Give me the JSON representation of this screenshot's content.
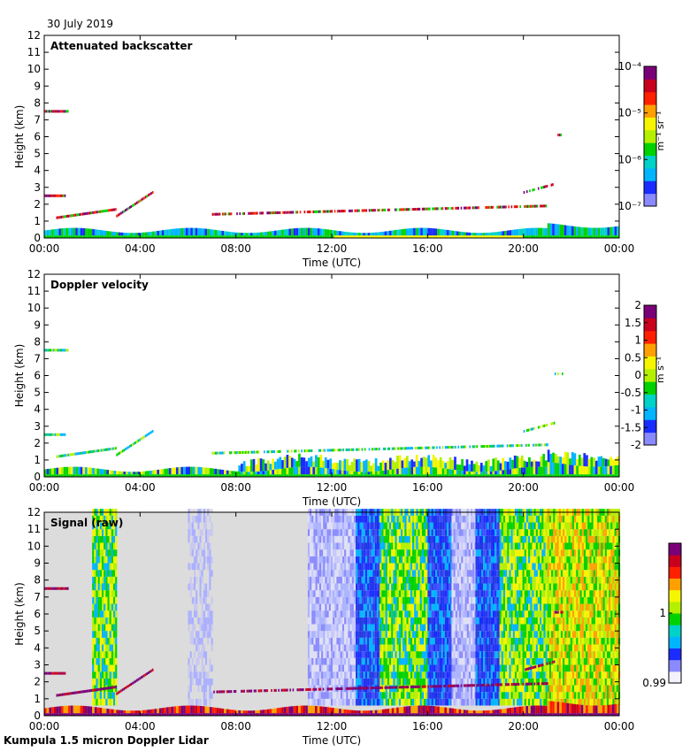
{
  "date": "30 July 2019",
  "footer": "Kumpula 1.5 micron Doppler Lidar",
  "colors": {
    "no_data": "#ffffff",
    "raw_background": "#dcdcdc",
    "colormap": [
      "#f2f2fb",
      "#8a8aff",
      "#1a2cff",
      "#00b4ff",
      "#00d2c8",
      "#00d200",
      "#b4f000",
      "#f5f500",
      "#ffa000",
      "#ff2000",
      "#c8001e",
      "#7a0078"
    ]
  },
  "chart_data": [
    {
      "type": "heatmap",
      "title": "Attenuated backscatter",
      "xlabel": "Time (UTC)",
      "ylabel": "Height (km)",
      "x_ticks": [
        "00:00",
        "04:00",
        "08:00",
        "12:00",
        "16:00",
        "20:00",
        "00:00"
      ],
      "xlim_hours": [
        0,
        24
      ],
      "ylim": [
        0,
        12
      ],
      "y_ticks": [
        0,
        1,
        2,
        3,
        4,
        5,
        6,
        7,
        8,
        9,
        10,
        11,
        12
      ],
      "colorbar": {
        "scale": "log",
        "range": [
          1e-07,
          0.0001
        ],
        "unit_text": "m⁻¹ sr⁻¹",
        "ticks": [
          {
            "label": "10⁻⁴",
            "value": -4
          },
          {
            "label": "10⁻⁵",
            "value": -5
          },
          {
            "label": "10⁻⁶",
            "value": -6
          },
          {
            "label": "10⁻⁷",
            "value": -7
          }
        ]
      },
      "features": {
        "boundary_layer": "blue-green near-surface layer from 0 to about 0.5-1 km all day",
        "cloud_layers_km": [
          {
            "from_h": 0.0,
            "to_h": 1.0,
            "height": 7.5
          },
          {
            "from_h": 0.0,
            "to_h": 0.9,
            "height": 2.5
          },
          {
            "from_h": 0.5,
            "to_h": 3.0,
            "height_from": 1.2,
            "height_to": 1.7
          },
          {
            "from_h": 3.0,
            "to_h": 4.5,
            "height_from": 1.3,
            "height_to": 2.7
          },
          {
            "from_h": 7.0,
            "to_h": 21.0,
            "height_from": 1.4,
            "height_to": 1.9
          },
          {
            "from_h": 20.0,
            "to_h": 21.3,
            "height_from": 2.7,
            "height_to": 3.2
          },
          {
            "from_h": 21.3,
            "to_h": 21.6,
            "height": 6.1
          }
        ]
      }
    },
    {
      "type": "heatmap",
      "title": "Doppler velocity",
      "xlabel": "Time (UTC)",
      "ylabel": "Height (km)",
      "x_ticks": [
        "00:00",
        "04:00",
        "08:00",
        "12:00",
        "16:00",
        "20:00",
        "00:00"
      ],
      "xlim_hours": [
        0,
        24
      ],
      "ylim": [
        0,
        12
      ],
      "y_ticks": [
        0,
        1,
        2,
        3,
        4,
        5,
        6,
        7,
        8,
        9,
        10,
        11,
        12
      ],
      "colorbar": {
        "scale": "linear",
        "range": [
          -2,
          2
        ],
        "unit_text": "m s⁻¹",
        "ticks": [
          {
            "label": "2",
            "value": 2
          },
          {
            "label": "1.5",
            "value": 1.5
          },
          {
            "label": "1",
            "value": 1
          },
          {
            "label": "0.5",
            "value": 0.5
          },
          {
            "label": "0",
            "value": 0
          },
          {
            "label": "-0.5",
            "value": -0.5
          },
          {
            "label": "-1",
            "value": -1
          },
          {
            "label": "-1.5",
            "value": -1.5
          },
          {
            "label": "-2",
            "value": -2
          }
        ]
      }
    },
    {
      "type": "heatmap",
      "title": "Signal (raw)",
      "xlabel": "Time (UTC)",
      "ylabel": "Height (km)",
      "x_ticks": [
        "00:00",
        "04:00",
        "08:00",
        "12:00",
        "16:00",
        "20:00",
        "00:00"
      ],
      "xlim_hours": [
        0,
        24
      ],
      "ylim": [
        0,
        12
      ],
      "y_ticks": [
        0,
        1,
        2,
        3,
        4,
        5,
        6,
        7,
        8,
        9,
        10,
        11,
        12
      ],
      "colorbar": {
        "scale": "linear",
        "range": [
          0.99,
          1.01
        ],
        "ticks": [
          {
            "label": "1",
            "value": 1.0
          },
          {
            "label": "0.99",
            "value": 0.99
          }
        ]
      },
      "noise_columns_hours": [
        {
          "from": 2.0,
          "to": 3.0,
          "level": "green"
        },
        {
          "from": 6.0,
          "to": 7.0,
          "level": "faint"
        },
        {
          "from": 11.0,
          "to": 13.0,
          "level": "light-blue"
        },
        {
          "from": 13.0,
          "to": 14.0,
          "level": "blue"
        },
        {
          "from": 14.0,
          "to": 16.0,
          "level": "green"
        },
        {
          "from": 16.0,
          "to": 17.0,
          "level": "blue"
        },
        {
          "from": 17.0,
          "to": 18.0,
          "level": "light-blue"
        },
        {
          "from": 18.0,
          "to": 19.0,
          "level": "blue"
        },
        {
          "from": 19.0,
          "to": 21.0,
          "level": "green"
        },
        {
          "from": 21.0,
          "to": 24.0,
          "level": "yellow"
        }
      ]
    }
  ]
}
